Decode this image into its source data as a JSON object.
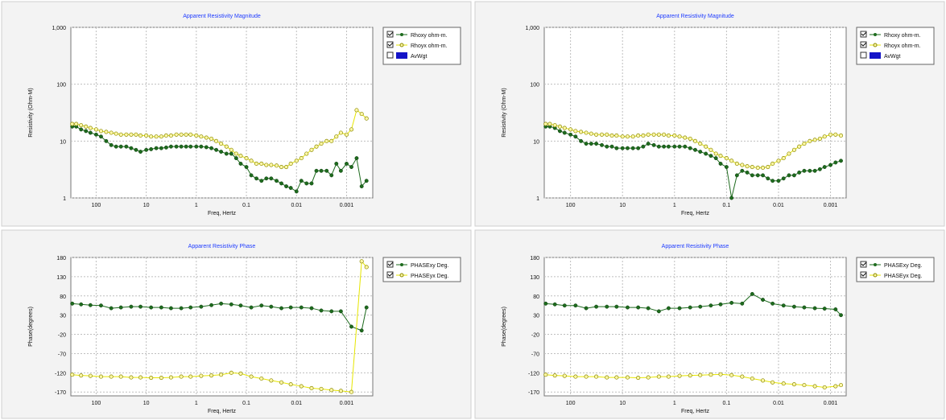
{
  "colors": {
    "green": "#1e6b1e",
    "yellow": "#e6e600",
    "yellowFill": "#fff7a6",
    "grid": "#bfbfbf",
    "bg": "#f3f3f3"
  },
  "panels": [
    {
      "id": "left",
      "top": {
        "title": "Apparent Resistivity Magnitude",
        "xlabel": "Freq, Hertz",
        "ylabel": "Resistivity (Ohm-M)",
        "yticks": [
          "1",
          "10",
          "100",
          "1,000"
        ],
        "xticks": [
          "100",
          "10",
          "1",
          "0.1",
          "0.01",
          "0.001"
        ],
        "legend": [
          {
            "label": "Rhoxy ohm-m.",
            "checked": true
          },
          {
            "label": "Rhoyx ohm-m.",
            "checked": true
          },
          {
            "label": "AvWgt",
            "checked": false
          }
        ]
      },
      "bottom": {
        "title": "Apparent Resistivity Phase",
        "xlabel": "Freq, Hertz",
        "ylabel": "Phase(degrees)",
        "yticks": [
          "180",
          "130",
          "80",
          "30",
          "-20",
          "-70",
          "-120",
          "-170"
        ],
        "xticks": [
          "100",
          "10",
          "1",
          "0.1",
          "0.01",
          "0.001"
        ],
        "legend": [
          {
            "label": "PHASExy Deg.",
            "checked": true
          },
          {
            "label": "PHASEyx Deg.",
            "checked": true
          }
        ]
      }
    },
    {
      "id": "right",
      "top": {
        "title": "Apparent Resistivity Magnitude",
        "xlabel": "Freq, Hertz",
        "ylabel": "Resistivity (Ohm-M)",
        "yticks": [
          "1",
          "10",
          "100",
          "1,000"
        ],
        "xticks": [
          "100",
          "10",
          "1",
          "0.1",
          "0.01",
          "0.001"
        ],
        "legend": [
          {
            "label": "Rhoxy ohm-m.",
            "checked": true
          },
          {
            "label": "Rhoyx ohm-m.",
            "checked": true
          },
          {
            "label": "AvWgt",
            "checked": false
          }
        ]
      },
      "bottom": {
        "title": "Apparent Resistivity Phase",
        "xlabel": "Freq, Hertz",
        "ylabel": "Phase(degrees)",
        "yticks": [
          "180",
          "130",
          "80",
          "30",
          "-20",
          "-70",
          "-120",
          "-170"
        ],
        "xticks": [
          "100",
          "10",
          "1",
          "0.1",
          "0.01",
          "0.001"
        ],
        "legend": [
          {
            "label": "PHASExy Deg.",
            "checked": true
          },
          {
            "label": "PHASEyx Deg.",
            "checked": true
          }
        ]
      }
    }
  ],
  "chart_data": [
    {
      "type": "scatter",
      "title": "Apparent Resistivity Magnitude",
      "xlabel": "Freq, Hertz",
      "ylabel": "Resistivity (Ohm-M)",
      "xlim": [
        320,
        0.0003
      ],
      "ylim": [
        1,
        1000
      ],
      "xscale": "log",
      "yscale": "log",
      "grid": true,
      "legend_position": "right",
      "series": [
        {
          "name": "Rhoxy ohm-m.",
          "color": "#1e6b1e",
          "x": [
            300,
            250,
            200,
            160,
            130,
            100,
            80,
            63,
            50,
            40,
            32,
            25,
            20,
            16,
            13,
            10,
            8,
            6.3,
            5,
            4,
            3.2,
            2.5,
            2,
            1.6,
            1.3,
            1,
            0.8,
            0.63,
            0.5,
            0.4,
            0.32,
            0.25,
            0.2,
            0.16,
            0.13,
            0.1,
            0.08,
            0.063,
            0.05,
            0.04,
            0.032,
            0.025,
            0.02,
            0.016,
            0.013,
            0.01,
            0.008,
            0.0063,
            0.005,
            0.004,
            0.0032,
            0.0025,
            0.002,
            0.0016,
            0.0013,
            0.001,
            0.0008,
            0.00063,
            0.0005,
            0.0004
          ],
          "y": [
            18,
            18,
            16,
            15,
            14,
            13,
            12,
            10,
            8.5,
            8,
            8,
            8,
            7.5,
            7,
            6.5,
            7,
            7.2,
            7.5,
            7.5,
            7.7,
            8,
            8,
            8,
            8,
            8,
            8,
            8,
            7.8,
            7.5,
            7,
            6.5,
            6,
            6,
            5,
            4,
            3.5,
            2.5,
            2.2,
            2,
            2.2,
            2.2,
            2,
            1.8,
            1.6,
            1.5,
            1.3,
            2,
            1.8,
            1.8,
            3,
            3,
            3,
            2.5,
            4,
            3,
            4,
            3.5,
            5,
            1.6,
            2
          ]
        },
        {
          "name": "Rhoyx ohm-m.",
          "color": "#e6e600",
          "x": [
            300,
            250,
            200,
            160,
            130,
            100,
            80,
            63,
            50,
            40,
            32,
            25,
            20,
            16,
            13,
            10,
            8,
            6.3,
            5,
            4,
            3.2,
            2.5,
            2,
            1.6,
            1.3,
            1,
            0.8,
            0.63,
            0.5,
            0.4,
            0.32,
            0.25,
            0.2,
            0.16,
            0.13,
            0.1,
            0.08,
            0.063,
            0.05,
            0.04,
            0.032,
            0.025,
            0.02,
            0.016,
            0.013,
            0.01,
            0.008,
            0.0063,
            0.005,
            0.004,
            0.0032,
            0.0025,
            0.002,
            0.0016,
            0.0013,
            0.001,
            0.0008,
            0.00063,
            0.0005,
            0.0004
          ],
          "y": [
            20,
            20,
            19,
            18,
            17,
            16,
            15,
            14.5,
            14,
            13.5,
            13,
            13,
            13,
            13,
            12.5,
            12.5,
            12,
            12,
            12,
            12.5,
            12.5,
            13,
            13,
            13,
            13,
            12.5,
            12,
            11.5,
            11,
            10,
            9,
            8,
            7,
            6,
            5.5,
            5,
            4.5,
            4,
            4,
            3.8,
            3.8,
            3.7,
            3.5,
            3.5,
            4,
            4.5,
            5,
            6,
            7,
            8,
            9,
            10,
            10,
            12,
            14,
            13,
            16,
            35,
            30,
            25
          ]
        }
      ]
    },
    {
      "type": "scatter",
      "title": "Apparent Resistivity Phase",
      "xlabel": "Freq, Hertz",
      "ylabel": "Phase(degrees)",
      "xlim": [
        320,
        0.0003
      ],
      "ylim": [
        -180,
        180
      ],
      "xscale": "log",
      "grid": true,
      "legend_position": "right",
      "series": [
        {
          "name": "PHASExy Deg.",
          "color": "#1e6b1e",
          "x": [
            300,
            200,
            130,
            80,
            50,
            32,
            20,
            13,
            8,
            5,
            3.2,
            2,
            1.3,
            0.8,
            0.5,
            0.32,
            0.2,
            0.13,
            0.08,
            0.05,
            0.032,
            0.02,
            0.013,
            0.008,
            0.005,
            0.0032,
            0.002,
            0.0013,
            0.0008,
            0.0005,
            0.0004
          ],
          "y": [
            60,
            58,
            56,
            55,
            48,
            50,
            52,
            52,
            50,
            50,
            48,
            48,
            50,
            52,
            56,
            60,
            58,
            55,
            50,
            55,
            52,
            48,
            50,
            50,
            48,
            42,
            40,
            40,
            0,
            -10,
            50
          ]
        },
        {
          "name": "PHASEyx Deg.",
          "color": "#e6e600",
          "x": [
            300,
            200,
            130,
            80,
            50,
            32,
            20,
            13,
            8,
            5,
            3.2,
            2,
            1.3,
            0.8,
            0.5,
            0.32,
            0.2,
            0.13,
            0.08,
            0.05,
            0.032,
            0.02,
            0.013,
            0.008,
            0.005,
            0.0032,
            0.002,
            0.0013,
            0.0008,
            0.0005,
            0.0004
          ],
          "y": [
            -125,
            -127,
            -128,
            -130,
            -130,
            -130,
            -132,
            -132,
            -133,
            -133,
            -132,
            -130,
            -130,
            -128,
            -127,
            -125,
            -120,
            -122,
            -130,
            -135,
            -140,
            -145,
            -150,
            -155,
            -160,
            -162,
            -165,
            -167,
            -170,
            170,
            155
          ]
        }
      ]
    },
    {
      "type": "scatter",
      "title": "Apparent Resistivity Magnitude",
      "xlabel": "Freq, Hertz",
      "ylabel": "Resistivity (Ohm-M)",
      "xlim": [
        320,
        0.0005
      ],
      "ylim": [
        1,
        1000
      ],
      "xscale": "log",
      "yscale": "log",
      "grid": true,
      "legend_position": "right",
      "series": [
        {
          "name": "Rhoxy ohm-m.",
          "color": "#1e6b1e",
          "x": [
            300,
            250,
            200,
            160,
            130,
            100,
            80,
            63,
            50,
            40,
            32,
            25,
            20,
            16,
            13,
            10,
            8,
            6.3,
            5,
            4,
            3.2,
            2.5,
            2,
            1.6,
            1.3,
            1,
            0.8,
            0.63,
            0.5,
            0.4,
            0.32,
            0.25,
            0.2,
            0.16,
            0.13,
            0.1,
            0.08,
            0.063,
            0.05,
            0.04,
            0.032,
            0.025,
            0.02,
            0.016,
            0.013,
            0.01,
            0.008,
            0.0063,
            0.005,
            0.004,
            0.0032,
            0.0025,
            0.002,
            0.0016,
            0.0013,
            0.001,
            0.0008,
            0.00063
          ],
          "y": [
            18,
            18,
            17,
            15,
            14,
            13,
            12,
            10,
            9,
            9,
            9,
            8.5,
            8,
            8,
            7.5,
            7.5,
            7.5,
            7.5,
            7.5,
            8,
            9,
            8.5,
            8,
            8,
            8,
            8,
            8,
            8,
            7.5,
            7,
            6.5,
            6,
            5.5,
            5,
            4,
            3.5,
            0.8,
            2.5,
            3,
            2.8,
            2.5,
            2.5,
            2.5,
            2.2,
            2,
            2,
            2.2,
            2.5,
            2.5,
            2.8,
            3,
            3,
            3,
            3.2,
            3.5,
            3.8,
            4.2,
            4.5
          ]
        },
        {
          "name": "Rhoyx ohm-m.",
          "color": "#e6e600",
          "x": [
            300,
            250,
            200,
            160,
            130,
            100,
            80,
            63,
            50,
            40,
            32,
            25,
            20,
            16,
            13,
            10,
            8,
            6.3,
            5,
            4,
            3.2,
            2.5,
            2,
            1.6,
            1.3,
            1,
            0.8,
            0.63,
            0.5,
            0.4,
            0.32,
            0.25,
            0.2,
            0.16,
            0.13,
            0.1,
            0.08,
            0.063,
            0.05,
            0.04,
            0.032,
            0.025,
            0.02,
            0.016,
            0.013,
            0.01,
            0.008,
            0.0063,
            0.005,
            0.004,
            0.0032,
            0.0025,
            0.002,
            0.0016,
            0.0013,
            0.001,
            0.0008,
            0.00063
          ],
          "y": [
            20,
            20,
            19,
            18,
            17,
            16,
            15,
            14.5,
            14,
            13.5,
            13,
            13,
            13,
            12.5,
            12.5,
            12,
            12,
            12,
            12.5,
            12.5,
            13,
            13,
            13,
            13,
            12.5,
            12.5,
            12,
            11.5,
            11,
            10,
            9,
            8,
            7,
            6,
            5.5,
            5,
            4.5,
            4,
            3.8,
            3.6,
            3.5,
            3.4,
            3.4,
            3.5,
            4,
            4.5,
            5,
            6,
            7,
            8,
            9,
            10,
            10.5,
            11,
            12,
            13,
            13,
            12.5
          ]
        }
      ]
    },
    {
      "type": "scatter",
      "title": "Apparent Resistivity Phase",
      "xlabel": "Freq, Hertz",
      "ylabel": "Phase(degrees)",
      "xlim": [
        320,
        0.0005
      ],
      "ylim": [
        -180,
        180
      ],
      "xscale": "log",
      "grid": true,
      "legend_position": "right",
      "series": [
        {
          "name": "PHASExy Deg.",
          "color": "#1e6b1e",
          "x": [
            300,
            200,
            130,
            80,
            50,
            32,
            20,
            13,
            8,
            5,
            3.2,
            2,
            1.3,
            0.8,
            0.5,
            0.32,
            0.2,
            0.13,
            0.08,
            0.05,
            0.032,
            0.02,
            0.013,
            0.008,
            0.005,
            0.0032,
            0.002,
            0.0013,
            0.0008,
            0.00063
          ],
          "y": [
            60,
            58,
            55,
            55,
            48,
            52,
            52,
            52,
            50,
            50,
            48,
            40,
            48,
            48,
            50,
            52,
            55,
            58,
            62,
            60,
            85,
            70,
            60,
            55,
            52,
            50,
            48,
            47,
            45,
            30
          ]
        },
        {
          "name": "PHASEyx Deg.",
          "color": "#e6e600",
          "x": [
            300,
            200,
            130,
            80,
            50,
            32,
            20,
            13,
            8,
            5,
            3.2,
            2,
            1.3,
            0.8,
            0.5,
            0.32,
            0.2,
            0.13,
            0.08,
            0.05,
            0.032,
            0.02,
            0.013,
            0.008,
            0.005,
            0.0032,
            0.002,
            0.0013,
            0.0008,
            0.00063
          ],
          "y": [
            -125,
            -127,
            -128,
            -130,
            -130,
            -130,
            -132,
            -132,
            -132,
            -133,
            -132,
            -130,
            -130,
            -128,
            -127,
            -126,
            -125,
            -124,
            -126,
            -130,
            -135,
            -140,
            -145,
            -148,
            -150,
            -152,
            -155,
            -158,
            -155,
            -152
          ]
        }
      ]
    }
  ]
}
